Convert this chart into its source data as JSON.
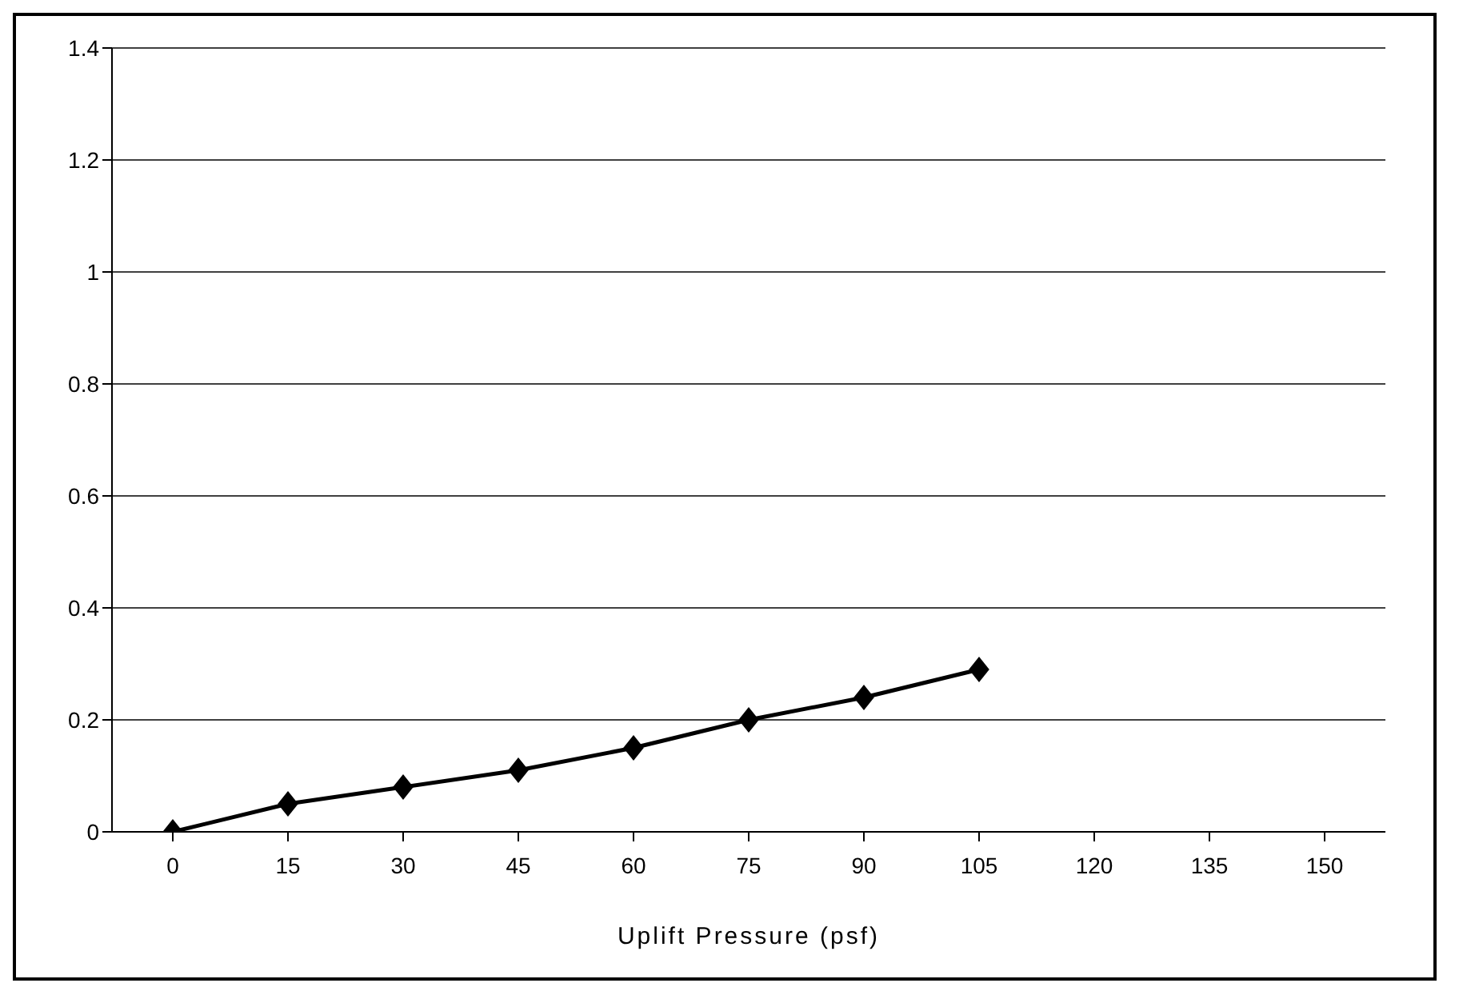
{
  "chart_data": {
    "type": "line",
    "xlabel": "Uplift Pressure (psf)",
    "categories": [
      "0",
      "15",
      "30",
      "45",
      "60",
      "75",
      "90",
      "105",
      "120",
      "135",
      "150"
    ],
    "series": [
      {
        "color": "#000000",
        "values": [
          0,
          0.05,
          0.08,
          0.11,
          0.15,
          0.2,
          0.24,
          0.29,
          null,
          null,
          null
        ]
      }
    ],
    "ylim": [
      0,
      1.4
    ],
    "yticks": [
      0,
      0.2,
      0.4,
      0.6,
      0.8,
      1,
      1.2,
      1.4
    ],
    "grid": "y",
    "marker": "diamond",
    "line_style": "solid"
  }
}
